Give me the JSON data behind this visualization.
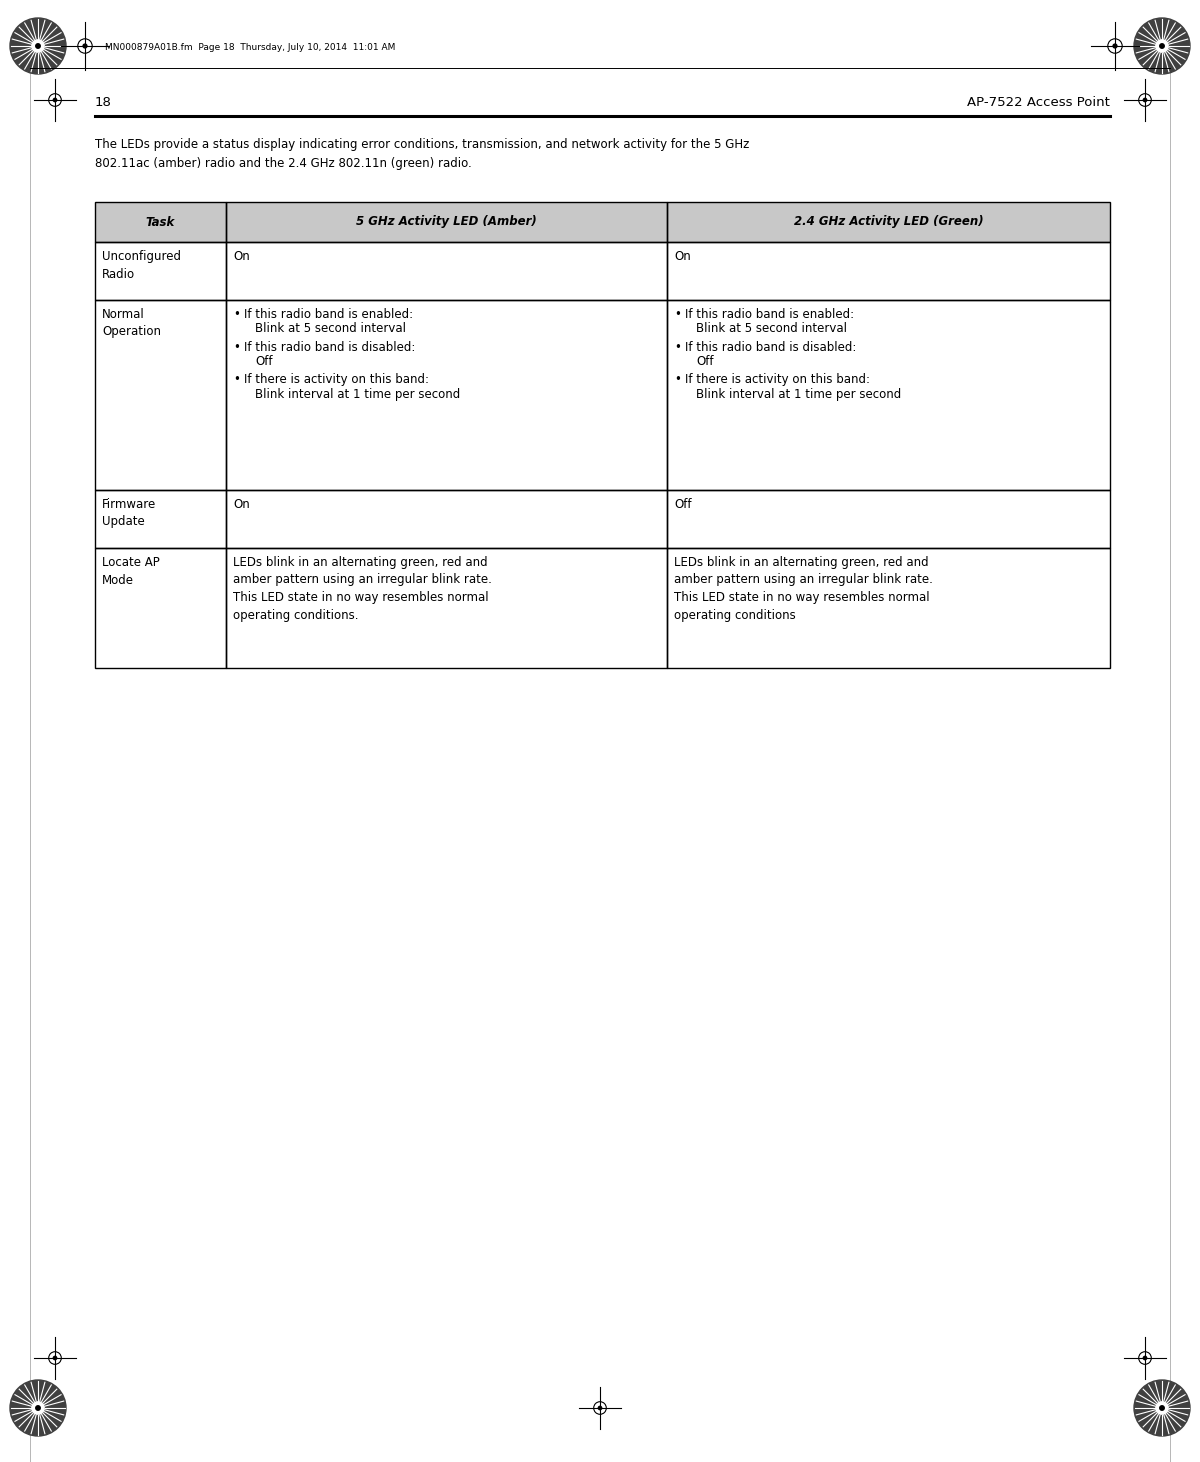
{
  "page_num": "18",
  "page_title": "AP-7522 Access Point",
  "header_text": "MN000879A01B.fm  Page 18  Thursday, July 10, 2014  11:01 AM",
  "intro_text": "The LEDs provide a status display indicating error conditions, transmission, and network activity for the 5 GHz\n802.11ac (amber) radio and the 2.4 GHz 802.11n (green) radio.",
  "col0_header": "Task",
  "col1_header_italic": "5 GHz Activity LED ",
  "col1_header_normal": "(Amber)",
  "col2_header_italic": "2.4 GHz Activity LED ",
  "col2_header_normal": "(Green)",
  "row0_task": "Unconfigured\nRadio",
  "row0_col1": "On",
  "row0_col2": "On",
  "row1_task": "Normal\nOperation",
  "row1_col1_bullets": [
    "If this radio band is enabled:",
    "Blink at 5 second interval",
    "If this radio band is disabled:",
    "Off",
    "If there is activity on this band:",
    "Blink interval at 1 time per second"
  ],
  "row1_col2_bullets": [
    "If this radio band is enabled:",
    "Blink at 5 second interval",
    "If this radio band is disabled:",
    "Off",
    "If there is activity on this band:",
    "Blink interval at 1 time per second"
  ],
  "row2_task": "Firmware\nUpdate",
  "row2_col1": "On",
  "row2_col2": "Off",
  "row3_task": "Locate AP\nMode",
  "row3_col1": "LEDs blink in an alternating green, red and\namber pattern using an irregular blink rate.\nThis LED state in no way resembles normal\noperating conditions.",
  "row3_col2": "LEDs blink in an alternating green, red and\namber pattern using an irregular blink rate.\nThis LED state in no way resembles normal\noperating conditions",
  "bg_color": "#ffffff",
  "header_bg": "#c8c8c8",
  "font_size_body": 8.5,
  "font_size_header_cell": 8.5,
  "font_size_page_label": 9.5,
  "font_size_intro": 8.5,
  "font_size_meta": 6.5
}
